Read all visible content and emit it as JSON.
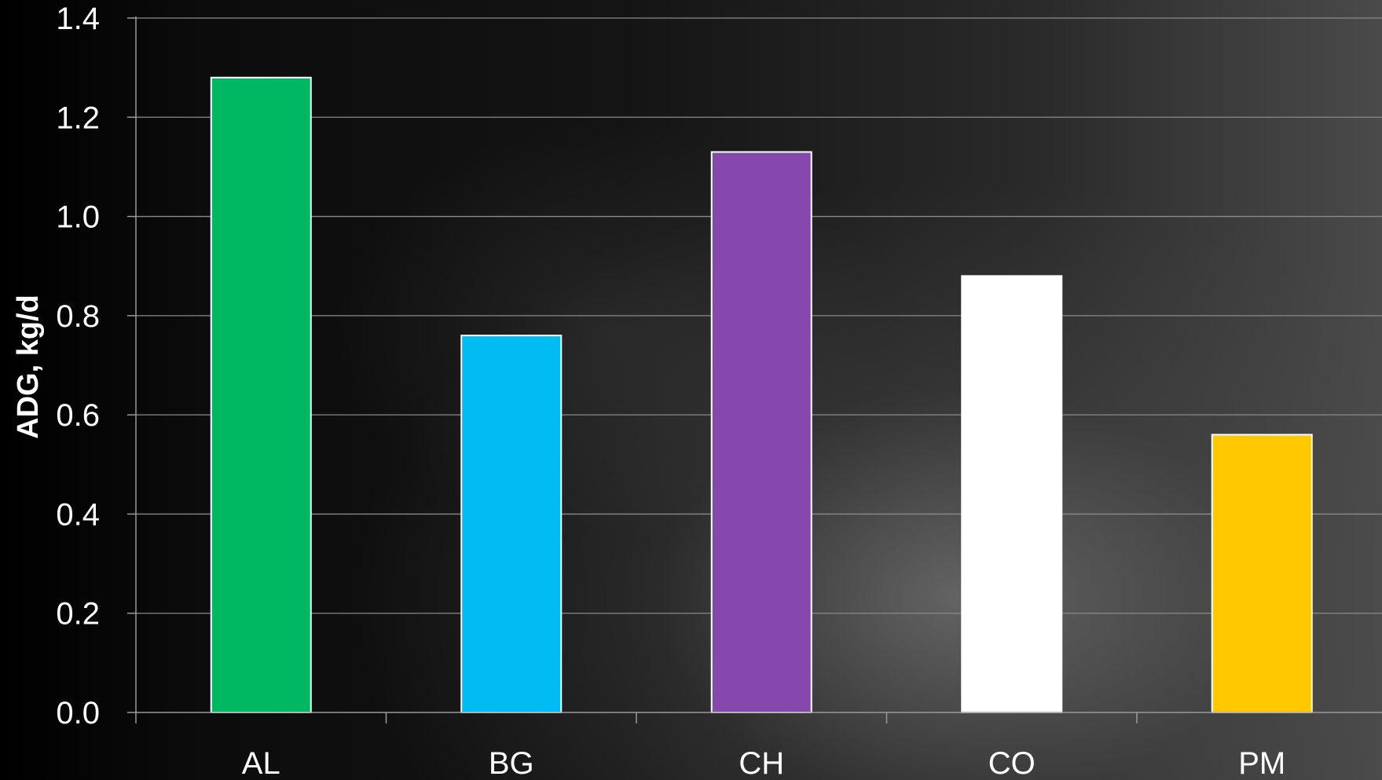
{
  "chart_data": {
    "type": "bar",
    "categories": [
      "AL",
      "BG",
      "CH",
      "CO",
      "PM"
    ],
    "values": [
      1.28,
      0.76,
      1.13,
      0.88,
      0.56
    ],
    "colors": [
      "#00b862",
      "#00bcf2",
      "#8549ad",
      "#ffffff",
      "#ffc800"
    ],
    "ylabel": "ADG, kg/d",
    "ylim": [
      0,
      1.4
    ],
    "yticks": [
      "0.0",
      "0.2",
      "0.4",
      "0.6",
      "0.8",
      "1.0",
      "1.2",
      "1.4"
    ],
    "grid": true,
    "legend": "none"
  }
}
